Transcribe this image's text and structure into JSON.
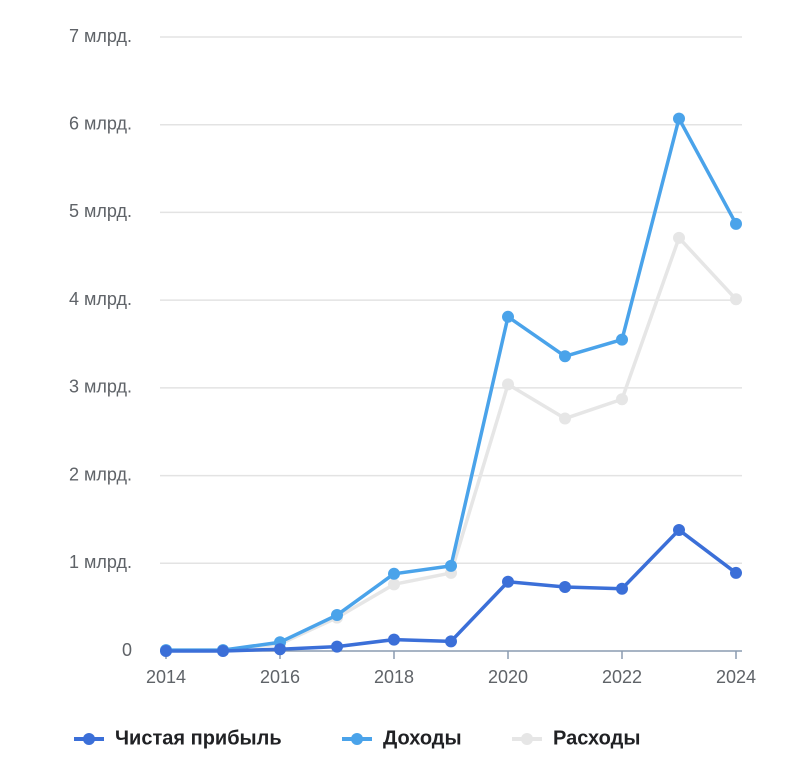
{
  "chart_data": {
    "type": "line",
    "x": [
      2014,
      2015,
      2016,
      2017,
      2018,
      2019,
      2020,
      2021,
      2022,
      2023,
      2024
    ],
    "xlim": [
      2014,
      2024
    ],
    "xticks": [
      2014,
      2016,
      2018,
      2020,
      2022,
      2024
    ],
    "ylim": [
      0,
      7
    ],
    "yticks": [
      0,
      {
        "value": 1,
        "label": "1 млрд."
      },
      {
        "value": 2,
        "label": "2 млрд."
      },
      {
        "value": 3,
        "label": "3 млрд."
      },
      {
        "value": 4,
        "label": "4 млрд."
      },
      {
        "value": 5,
        "label": "5 млрд."
      },
      {
        "value": 6,
        "label": "6 млрд."
      },
      {
        "value": 7,
        "label": "7 млрд."
      }
    ],
    "grid": true,
    "legend": "bottom",
    "series": [
      {
        "name": "Чистая прибыль",
        "color": "#3b6fd8",
        "values": [
          0,
          0,
          0.02,
          0.05,
          0.13,
          0.11,
          0.79,
          0.73,
          0.71,
          1.38,
          0.89
        ]
      },
      {
        "name": "Доходы",
        "color": "#4aa3ea",
        "values": [
          0.01,
          0.01,
          0.1,
          0.41,
          0.88,
          0.97,
          3.81,
          3.36,
          3.55,
          6.07,
          4.87
        ]
      },
      {
        "name": "Расходы",
        "color": "#e6e6e6",
        "values": [
          0.01,
          0.01,
          0.08,
          0.38,
          0.76,
          0.89,
          3.04,
          2.65,
          2.87,
          4.71,
          4.01
        ]
      }
    ]
  }
}
